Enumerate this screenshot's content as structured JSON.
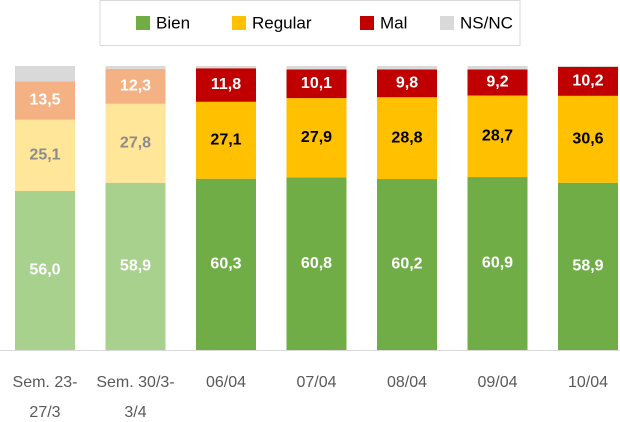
{
  "chart_data": {
    "type": "stacked_bar",
    "categories": [
      "Sem. 23-27/3",
      "Sem. 30/3-3/4",
      "06/04",
      "07/04",
      "08/04",
      "09/04",
      "10/04"
    ],
    "ylim": [
      0,
      100
    ],
    "legend": "top",
    "series": [
      {
        "name": "Bien",
        "color": "#70ad47",
        "colors": [
          "#a9d18e",
          "#a9d18e",
          "#70ad47",
          "#70ad47",
          "#70ad47",
          "#70ad47",
          "#70ad47"
        ],
        "label_colors": [
          "#ffffff",
          "#ffffff",
          "#ffffff",
          "#ffffff",
          "#ffffff",
          "#ffffff",
          "#ffffff"
        ],
        "values": [
          56.0,
          58.9,
          60.3,
          60.8,
          60.2,
          60.9,
          58.9
        ],
        "value_labels": [
          "56,0",
          "58,9",
          "60,3",
          "60,8",
          "60,2",
          "60,9",
          "58,9"
        ]
      },
      {
        "name": "Regular",
        "color": "#ffc000",
        "colors": [
          "#ffe699",
          "#ffe699",
          "#ffc000",
          "#ffc000",
          "#ffc000",
          "#ffc000",
          "#ffc000"
        ],
        "label_colors": [
          "#8c8c8c",
          "#8c8c8c",
          "#000000",
          "#000000",
          "#000000",
          "#000000",
          "#000000"
        ],
        "values": [
          25.1,
          27.8,
          27.1,
          27.9,
          28.8,
          28.7,
          30.6
        ],
        "value_labels": [
          "25,1",
          "27,8",
          "27,1",
          "27,9",
          "28,8",
          "28,7",
          "30,6"
        ]
      },
      {
        "name": "Mal",
        "color": "#c00000",
        "colors": [
          "#f4b183",
          "#f4b183",
          "#c00000",
          "#c00000",
          "#c00000",
          "#c00000",
          "#c00000"
        ],
        "label_colors": [
          "#ffffff",
          "#ffffff",
          "#ffffff",
          "#ffffff",
          "#ffffff",
          "#ffffff",
          "#ffffff"
        ],
        "values": [
          13.5,
          12.3,
          11.8,
          10.1,
          9.8,
          9.2,
          10.2
        ],
        "value_labels": [
          "13,5",
          "12,3",
          "11,8",
          "10,1",
          "9,8",
          "9,2",
          "10,2"
        ]
      },
      {
        "name": "NS/NC",
        "color": "#d9d9d9",
        "colors": [
          "#d9d9d9",
          "#d9d9d9",
          "#d9d9d9",
          "#d9d9d9",
          "#d9d9d9",
          "#d9d9d9",
          "#d9d9d9"
        ],
        "values": [
          5.4,
          1.0,
          0.8,
          1.2,
          1.2,
          1.2,
          0.3
        ]
      }
    ]
  }
}
